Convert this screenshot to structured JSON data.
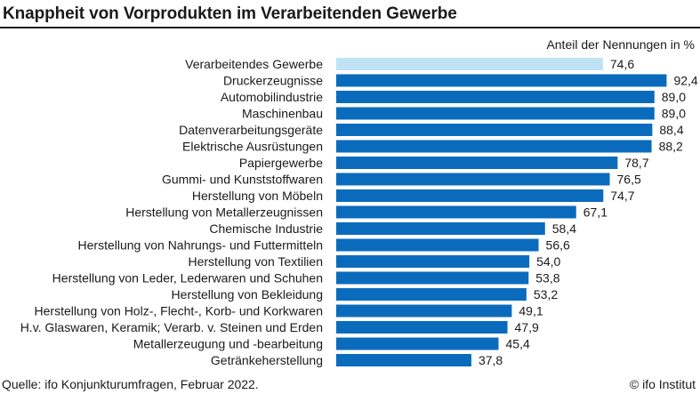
{
  "title": "Knappheit von Vorprodukten im Verarbeitenden Gewerbe",
  "unit_label": "Anteil der Nennungen in %",
  "source": "Quelle: ifo Konjunkturumfragen, Februar 2022.",
  "copyright": "© ifo Institut",
  "colors": {
    "bar": "#0a6bbd",
    "highlight_bar": "#bfe3f5",
    "text": "#1a1a1a"
  },
  "chart_data": {
    "type": "bar",
    "orientation": "horizontal",
    "title": "Knappheit von Vorprodukten im Verarbeitenden Gewerbe",
    "unit": "Anteil der Nennungen in %",
    "xlim": [
      0,
      100
    ],
    "grid": false,
    "highlight_index": 0,
    "categories": [
      "Verarbeitendes Gewerbe",
      "Druckerzeugnisse",
      "Automobilindustrie",
      "Maschinenbau",
      "Datenverarbeitungsgeräte",
      "Elektrische Ausrüstungen",
      "Papiergewerbe",
      "Gummi- und Kunststoffwaren",
      "Herstellung von Möbeln",
      "Herstellung von Metallerzeugnissen",
      "Chemische Industrie",
      "Herstellung von Nahrungs- und Futtermitteln",
      "Herstellung von Textilien",
      "Herstellung von Leder, Lederwaren und Schuhen",
      "Herstellung von Bekleidung",
      "Herstellung von Holz-, Flecht-, Korb- und Korkwaren",
      "H.v. Glaswaren, Keramik; Verarb. v. Steinen und Erden",
      "Metallerzeugung und -bearbeitung",
      "Getränkeherstellung"
    ],
    "values": [
      74.6,
      92.4,
      89.0,
      89.0,
      88.4,
      88.2,
      78.7,
      76.5,
      74.7,
      67.1,
      58.4,
      56.6,
      54.0,
      53.8,
      53.2,
      49.1,
      47.9,
      45.4,
      37.8
    ],
    "value_labels": [
      "74,6",
      "92,4",
      "89,0",
      "89,0",
      "88,4",
      "88,2",
      "78,7",
      "76,5",
      "74,7",
      "67,1",
      "58,4",
      "56,6",
      "54,0",
      "53,8",
      "53,2",
      "49,1",
      "47,9",
      "45,4",
      "37,8"
    ]
  }
}
